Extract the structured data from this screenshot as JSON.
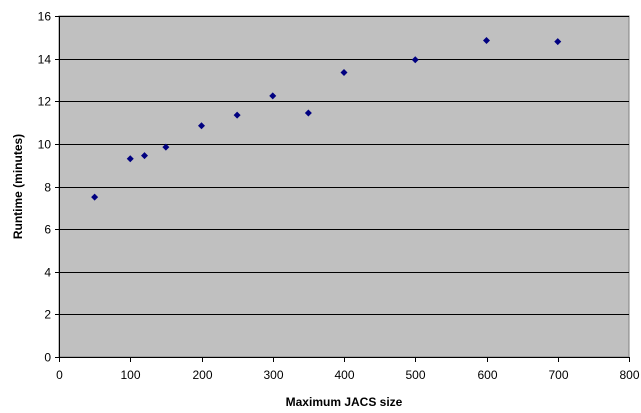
{
  "chart_data": {
    "type": "scatter",
    "title": "",
    "xlabel": "Maximum JACS size",
    "ylabel": "Runtime (minutes)",
    "xlim": [
      0,
      800
    ],
    "ylim": [
      0,
      16
    ],
    "x_ticks": [
      0,
      100,
      200,
      300,
      400,
      500,
      600,
      700,
      800
    ],
    "y_ticks": [
      0,
      2,
      4,
      6,
      8,
      10,
      12,
      14,
      16
    ],
    "grid": "horizontal",
    "legend": "none",
    "marker": "diamond",
    "colors": {
      "plot_background": "#C0C0C0",
      "marker": "#000080",
      "gridline": "#000000"
    },
    "series": [
      {
        "points": [
          {
            "x": 50,
            "y": 7.5
          },
          {
            "x": 100,
            "y": 9.3
          },
          {
            "x": 120,
            "y": 9.45
          },
          {
            "x": 150,
            "y": 9.85
          },
          {
            "x": 200,
            "y": 10.85
          },
          {
            "x": 250,
            "y": 11.35
          },
          {
            "x": 300,
            "y": 12.25
          },
          {
            "x": 350,
            "y": 11.45
          },
          {
            "x": 400,
            "y": 13.35
          },
          {
            "x": 500,
            "y": 13.95
          },
          {
            "x": 600,
            "y": 14.85
          },
          {
            "x": 700,
            "y": 14.8
          }
        ]
      }
    ]
  }
}
